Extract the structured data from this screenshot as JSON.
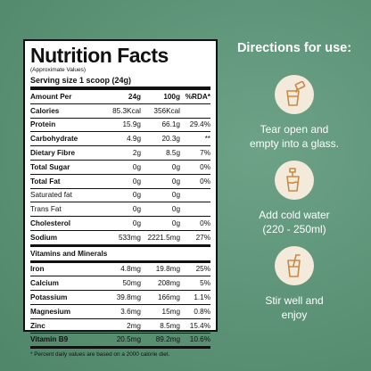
{
  "panel": {
    "title": "Nutrition Facts",
    "subtitle": "(Approximate Values)",
    "serving": "Serving size 1 scoop (24g)",
    "header": {
      "label": "Amount Per",
      "col1": "24g",
      "col2": "100g",
      "col3": "%RDA*"
    },
    "rows": [
      {
        "label": "Calories",
        "v1": "85.3Kcal",
        "v2": "356Kcal",
        "v3": ""
      },
      {
        "label": "Protein",
        "v1": "15.9g",
        "v2": "66.1g",
        "v3": "29.4%"
      },
      {
        "label": "Carbohydrate",
        "v1": "4.9g",
        "v2": "20.3g",
        "v3": "**"
      },
      {
        "label": "Dietary Fibre",
        "v1": "2g",
        "v2": "8.5g",
        "v3": "7%"
      },
      {
        "label": "Total Sugar",
        "v1": "0g",
        "v2": "0g",
        "v3": "0%"
      },
      {
        "label": "Total Fat",
        "v1": "0g",
        "v2": "0g",
        "v3": "0%"
      },
      {
        "label": "Saturated fat",
        "v1": "0g",
        "v2": "0g",
        "v3": ""
      },
      {
        "label": "Trans Fat",
        "v1": "0g",
        "v2": "0g",
        "v3": ""
      },
      {
        "label": "Cholesterol",
        "v1": "0g",
        "v2": "0g",
        "v3": "0%"
      },
      {
        "label": "Sodium",
        "v1": "533mg",
        "v2": "2221.5mg",
        "v3": "27%"
      }
    ],
    "vitamins_header": "Vitamins and Minerals",
    "minerals": [
      {
        "label": "Iron",
        "v1": "4.8mg",
        "v2": "19.8mg",
        "v3": "25%"
      },
      {
        "label": "Calcium",
        "v1": "50mg",
        "v2": "208mg",
        "v3": "5%"
      },
      {
        "label": "Potassium",
        "v1": "39.8mg",
        "v2": "166mg",
        "v3": "1.1%"
      },
      {
        "label": "Magnesium",
        "v1": "3.6mg",
        "v2": "15mg",
        "v3": "0.8%"
      },
      {
        "label": "Zinc",
        "v1": "2mg",
        "v2": "8.5mg",
        "v3": "15.4%"
      },
      {
        "label": "Vitamin B9",
        "v1": "20.5mg",
        "v2": "89.2mg",
        "v3": "10.6%"
      }
    ],
    "footnote": "* Percent daily values are based on a 2000 calorie diet."
  },
  "directions": {
    "title": "Directions for use:",
    "steps": [
      {
        "line1": "Tear open and",
        "line2": "empty into a glass.",
        "icon": "sachet-pour-icon"
      },
      {
        "line1": "Add cold water",
        "line2": "(220 - 250ml)",
        "icon": "water-pour-icon"
      },
      {
        "line1": "Stir well and",
        "line2": "enjoy",
        "icon": "glass-straw-icon"
      }
    ]
  },
  "colors": {
    "background": "#5d9478",
    "icon_circle": "#f3eadb",
    "icon_stroke": "#c98a45"
  }
}
